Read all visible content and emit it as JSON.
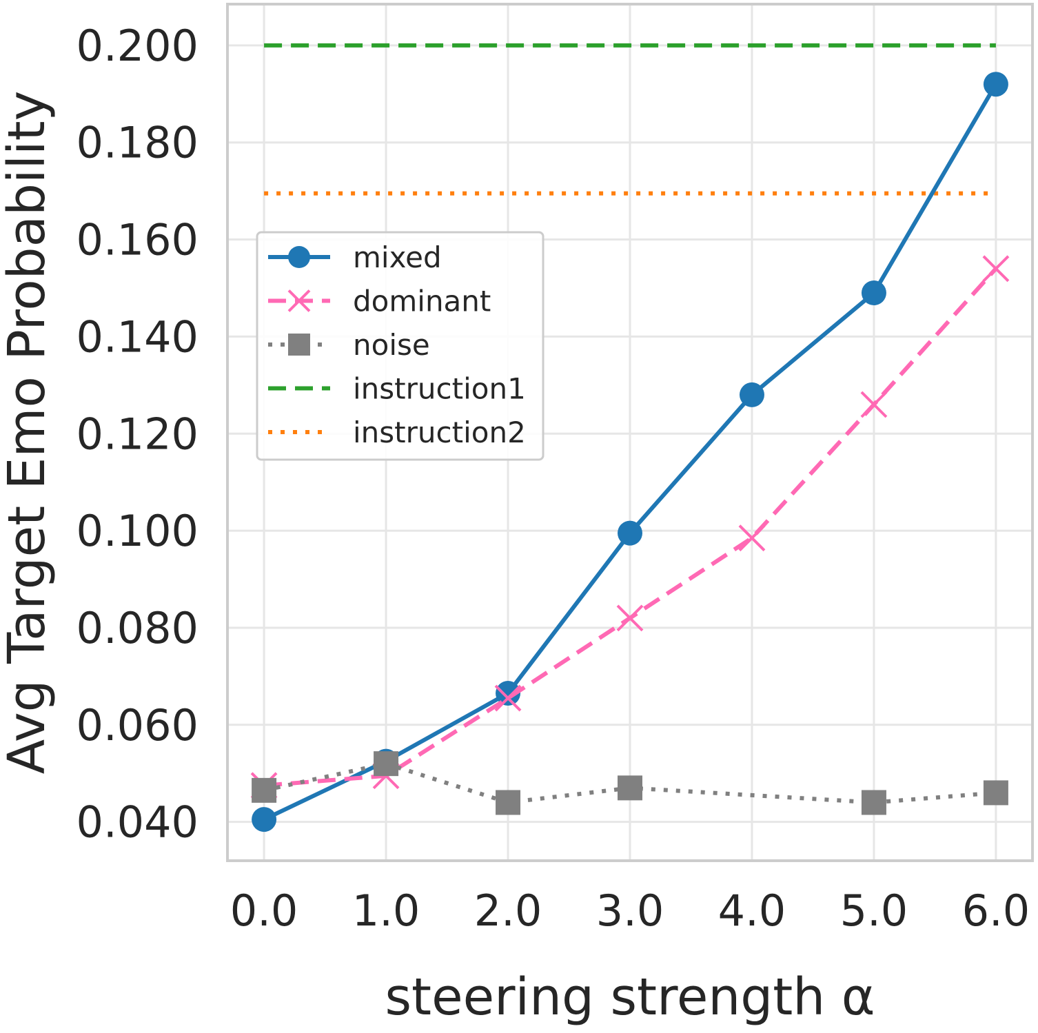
{
  "chart_data": {
    "type": "line",
    "title": "",
    "xlabel": "steering strength α",
    "ylabel": "Avg Target Emo Probability",
    "x": [
      0.0,
      1.0,
      2.0,
      3.0,
      4.0,
      5.0,
      6.0
    ],
    "x_tick_labels": [
      "0.0",
      "1.0",
      "2.0",
      "3.0",
      "4.0",
      "5.0",
      "6.0"
    ],
    "y_ticks": [
      0.04,
      0.06,
      0.08,
      0.1,
      0.12,
      0.14,
      0.16,
      0.18,
      0.2
    ],
    "y_tick_labels": [
      "0.040",
      "0.060",
      "0.080",
      "0.100",
      "0.120",
      "0.140",
      "0.160",
      "0.180",
      "0.200"
    ],
    "xlim": [
      -0.3,
      6.3
    ],
    "ylim": [
      0.032,
      0.2085
    ],
    "grid": true,
    "legend_position": "center-left",
    "series": [
      {
        "name": "mixed",
        "values": [
          0.0405,
          0.0525,
          0.0665,
          0.0995,
          0.128,
          0.149,
          0.192
        ],
        "color": "#1f77b4",
        "linestyle": "solid",
        "marker": "circle"
      },
      {
        "name": "dominant",
        "values": [
          0.0475,
          0.0495,
          0.0655,
          0.082,
          0.0985,
          0.126,
          0.154
        ],
        "color": "#ff69b4",
        "linestyle": "dashed",
        "marker": "x"
      },
      {
        "name": "noise",
        "values": [
          0.0465,
          0.052,
          0.044,
          0.047,
          null,
          0.044,
          0.046
        ],
        "color": "#808080",
        "linestyle": "dotted",
        "marker": "square"
      },
      {
        "name": "instruction1",
        "values": [
          0.2,
          0.2,
          0.2,
          0.2,
          0.2,
          0.2,
          0.2
        ],
        "color": "#2ca02c",
        "linestyle": "dashed",
        "marker": "none"
      },
      {
        "name": "instruction2",
        "values": [
          0.1695,
          0.1695,
          0.1695,
          0.1695,
          0.1695,
          0.1695,
          0.1695
        ],
        "color": "#ff7f0e",
        "linestyle": "dotted",
        "marker": "none"
      }
    ]
  }
}
